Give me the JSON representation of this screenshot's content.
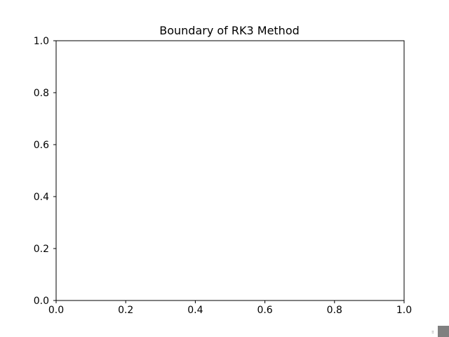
{
  "chart_data": {
    "type": "line",
    "title": "Boundary of RK3 Method",
    "xlabel": "",
    "ylabel": "",
    "xlim": [
      0.0,
      1.0
    ],
    "ylim": [
      0.0,
      1.0
    ],
    "x_ticks": [
      "0.0",
      "0.2",
      "0.4",
      "0.6",
      "0.8",
      "1.0"
    ],
    "y_ticks": [
      "0.0",
      "0.2",
      "0.4",
      "0.6",
      "0.8",
      "1.0"
    ],
    "grid": false,
    "series": []
  },
  "colors": {
    "axes": "#000000",
    "background": "#ffffff",
    "corner_widget": "#808080"
  }
}
